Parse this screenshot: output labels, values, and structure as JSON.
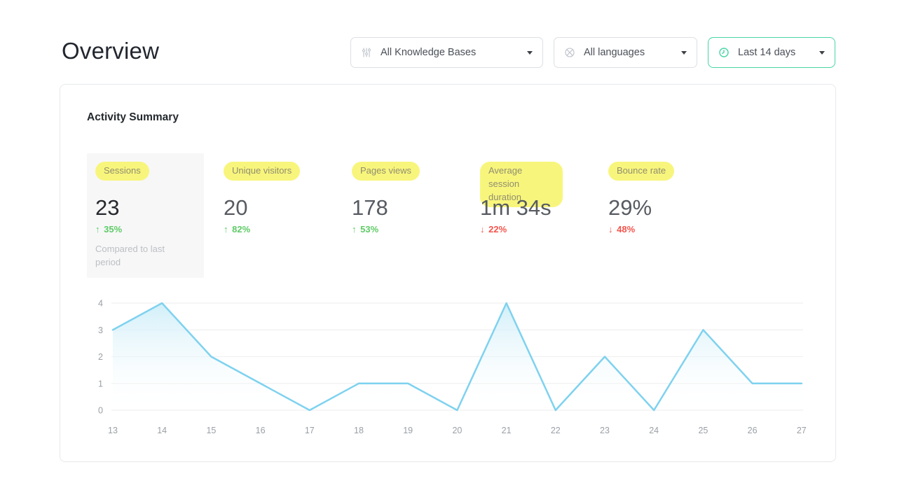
{
  "page": {
    "title": "Overview"
  },
  "filters": {
    "knowledge_bases": {
      "label": "All Knowledge Bases",
      "icon": "sliders-icon"
    },
    "languages": {
      "label": "All languages",
      "icon": "globe-icon"
    },
    "date_range": {
      "label": "Last 14 days",
      "icon": "clock-icon",
      "accent": "#47d6a4"
    }
  },
  "activity": {
    "title": "Activity Summary",
    "compare_note": "Compared to last period",
    "metrics": [
      {
        "label": "Sessions",
        "value": "23",
        "change": "35%",
        "direction": "up",
        "highlighted": true
      },
      {
        "label": "Unique visitors",
        "value": "20",
        "change": "82%",
        "direction": "up",
        "highlighted": false
      },
      {
        "label": "Pages views",
        "value": "178",
        "change": "53%",
        "direction": "up",
        "highlighted": false
      },
      {
        "label": "Average session duration",
        "value": "1m 34s",
        "change": "22%",
        "direction": "down",
        "highlighted": false
      },
      {
        "label": "Bounce rate",
        "value": "29%",
        "change": "48%",
        "direction": "down",
        "highlighted": false
      }
    ]
  },
  "chart_data": {
    "type": "area",
    "title": "",
    "xlabel": "",
    "ylabel": "",
    "x": [
      13,
      14,
      15,
      16,
      17,
      18,
      19,
      20,
      21,
      22,
      23,
      24,
      25,
      26,
      27
    ],
    "values": [
      3,
      4,
      2,
      1,
      0,
      1,
      1,
      0,
      4,
      0,
      2,
      0,
      3,
      1,
      1
    ],
    "ylim": [
      0,
      4
    ],
    "yticks": [
      0,
      1,
      2,
      3,
      4
    ],
    "grid": true,
    "legend": "none",
    "line_color": "#7fd2ef",
    "fill_top_color": "#c9ecf8",
    "axis_label_color": "#9aa0a6",
    "grid_color": "#f1f1f2"
  },
  "colors": {
    "positive": "#5ecb66",
    "negative": "#f2554c",
    "highlight_pill": "#f8f57c",
    "date_accent": "#47d6a4"
  }
}
